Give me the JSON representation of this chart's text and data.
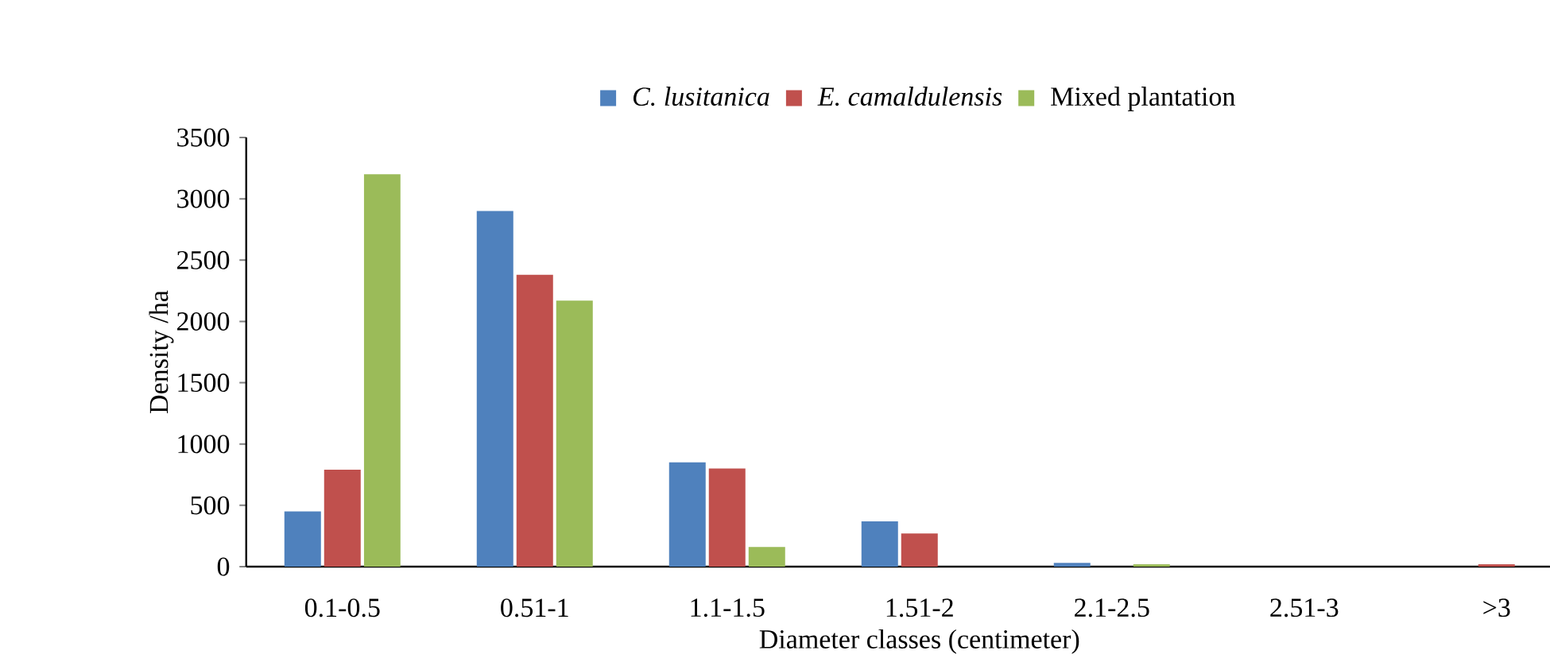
{
  "chart_data": {
    "type": "bar",
    "xlabel": "Diameter classes (centimeter)",
    "ylabel": "Density /ha",
    "categories": [
      "0.1-0.5",
      "0.51-1",
      "1.1-1.5",
      "1.51-2",
      "2.1-2.5",
      "2.51-3",
      ">3"
    ],
    "series": [
      {
        "name": "*C. lusitanica*",
        "color": "#4f81bd",
        "values": [
          450,
          2900,
          850,
          370,
          30,
          0,
          0
        ]
      },
      {
        "name": "*E. camaldulensis*",
        "color": "#c0504d",
        "values": [
          790,
          2380,
          800,
          270,
          0,
          0,
          20
        ]
      },
      {
        "name": "Mixed plantation",
        "color": "#9bbb59",
        "values": [
          3200,
          2170,
          160,
          0,
          20,
          0,
          0
        ]
      }
    ],
    "ylim": [
      0,
      3500
    ],
    "yticks": [
      0,
      500,
      1000,
      1500,
      2000,
      2500,
      3000,
      3500
    ],
    "grid": false,
    "legend": "top"
  }
}
